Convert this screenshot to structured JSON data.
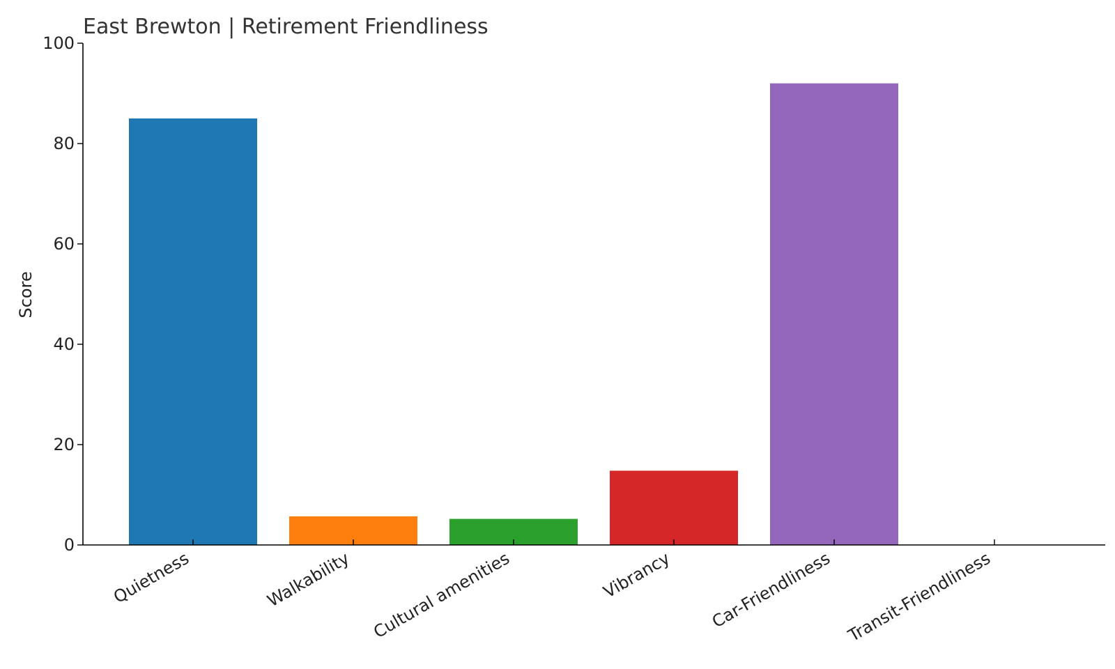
{
  "chart_data": {
    "type": "bar",
    "title": "East Brewton | Retirement Friendliness",
    "xlabel": "",
    "ylabel": "Score",
    "ylim": [
      0,
      100
    ],
    "yticks": [
      0,
      20,
      40,
      60,
      80,
      100
    ],
    "categories": [
      "Quietness",
      "Walkability",
      "Cultural amenities",
      "Vibrancy",
      "Car-Friendliness",
      "Transit-Friendliness"
    ],
    "values": [
      85,
      5.7,
      5.2,
      14.8,
      92,
      0
    ],
    "colors": [
      "#1f77b4",
      "#ff7f0e",
      "#2ca02c",
      "#d62728",
      "#9467bd",
      "#8c564b"
    ],
    "grid": false,
    "legend": "none"
  }
}
